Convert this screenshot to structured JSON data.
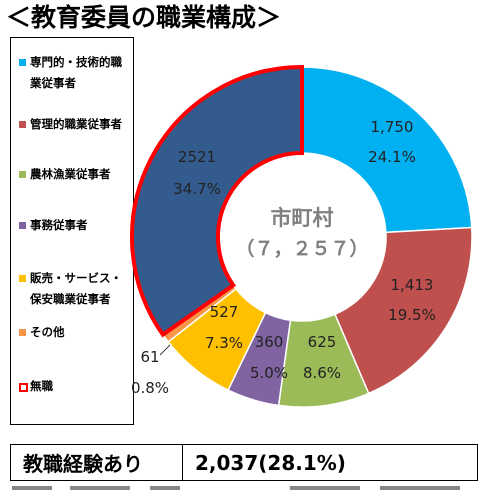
{
  "title": "＜教育委員の職業構成＞",
  "center": {
    "line1": "市町村",
    "line2": "（７，２５７）"
  },
  "footer": {
    "label": "教職経験あり",
    "value": "2,037(28.1%)"
  },
  "chart_data": {
    "type": "pie",
    "donut": true,
    "total": 7257,
    "title": "＜教育委員の職業構成＞",
    "legend_position": "left",
    "slices": [
      {
        "name": "専門的・技術的職業従事者",
        "value": 1750,
        "value_label": "1,750",
        "pct_label": "24.1%",
        "color": "#00b0f0",
        "highlight": false
      },
      {
        "name": "管理的職業従事者",
        "value": 1413,
        "value_label": "1,413",
        "pct_label": "19.5%",
        "color": "#c0504d",
        "highlight": false
      },
      {
        "name": "農林漁業従事者",
        "value": 625,
        "value_label": "625",
        "pct_label": "8.6%",
        "color": "#9bbb59",
        "highlight": false
      },
      {
        "name": "事務従事者",
        "value": 360,
        "value_label": "360",
        "pct_label": "5.0%",
        "color": "#8064a2",
        "highlight": false
      },
      {
        "name": "販売・サービス・保安職業従事者",
        "value": 527,
        "value_label": "527",
        "pct_label": "7.3%",
        "color": "#ffc000",
        "highlight": false
      },
      {
        "name": "その他",
        "value": 61,
        "value_label": "61",
        "pct_label": "0.8%",
        "color": "#f79646",
        "highlight": false
      },
      {
        "name": "無職",
        "value": 2521,
        "value_label": "2521",
        "pct_label": "34.7%",
        "color": "#335b8e",
        "highlight": true,
        "highlight_color": "#ff0000"
      }
    ],
    "legend": [
      {
        "lines": [
          "専門的・技術的職",
          "業従事者"
        ],
        "color": "#00b0f0"
      },
      {
        "lines": [
          "管理的職業従事者"
        ],
        "color": "#c0504d"
      },
      {
        "lines": [
          "農林漁業従事者"
        ],
        "color": "#9bbb59"
      },
      {
        "lines": [
          "事務従事者"
        ],
        "color": "#8064a2"
      },
      {
        "lines": [
          "販売・サービス・",
          "保安職業従事者"
        ],
        "color": "#ffc000"
      },
      {
        "lines": [
          "その他"
        ],
        "color": "#f79646"
      },
      {
        "lines": [
          "無職"
        ],
        "color": "#ffffff",
        "border": "#ff0000"
      }
    ]
  }
}
